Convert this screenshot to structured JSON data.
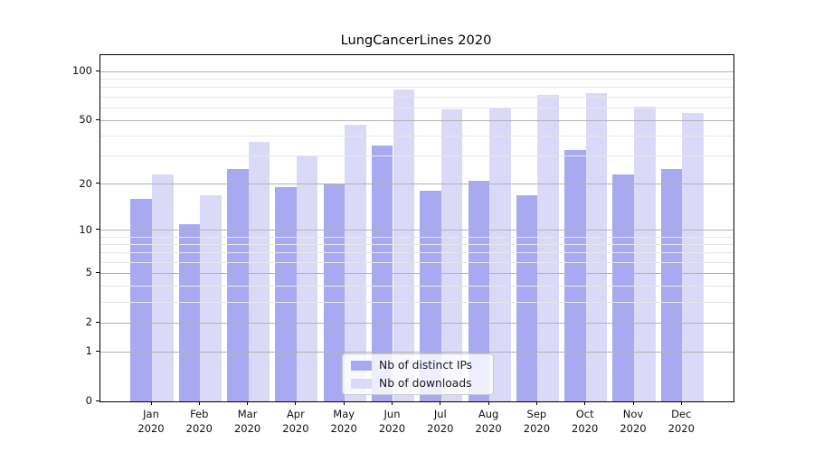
{
  "title": "LungCancerLines 2020",
  "chart_data": {
    "type": "bar",
    "title": "LungCancerLines 2020",
    "categories": [
      "Jan 2020",
      "Feb 2020",
      "Mar 2020",
      "Apr 2020",
      "May 2020",
      "Jun 2020",
      "Jul 2020",
      "Aug 2020",
      "Sep 2020",
      "Oct 2020",
      "Nov 2020",
      "Dec 2020"
    ],
    "series": [
      {
        "name": "Nb of distinct IPs",
        "color": "#a9a9f2",
        "values": [
          16,
          11,
          25,
          19,
          20,
          35,
          18,
          21,
          17,
          33,
          23,
          25
        ]
      },
      {
        "name": "Nb of downloads",
        "color": "#dadaf8",
        "values": [
          23,
          17,
          37,
          30,
          47,
          78,
          59,
          60,
          72,
          74,
          61,
          56
        ]
      }
    ],
    "xlabel": "",
    "ylabel": "",
    "yscale": "log(value+1)",
    "ylim": [
      0,
      128
    ],
    "yticks": [
      0,
      1,
      2,
      5,
      10,
      20,
      50,
      100
    ],
    "minor_yticks": [
      3,
      4,
      6,
      7,
      8,
      9,
      30,
      40,
      60,
      70,
      80,
      90
    ],
    "grid": "horizontal major+minor, drawn above bars",
    "legend_position": "lower center inside plot"
  },
  "colors": {
    "bar_dark": "#a9a9f2",
    "bar_light": "#dadaf8",
    "grid_major": "#b2b2b2",
    "grid_minor": "#e7e7e7",
    "spine": "#000000",
    "legend_border": "#cccccc"
  }
}
